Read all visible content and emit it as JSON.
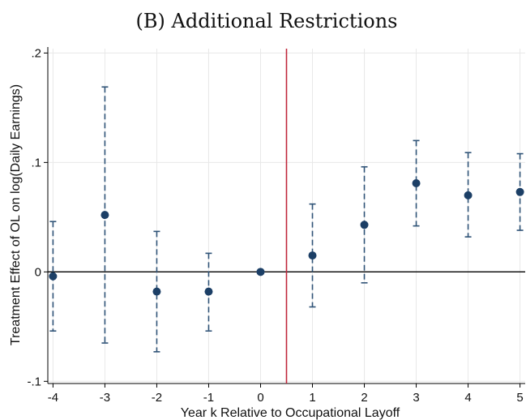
{
  "chart_data": {
    "type": "scatter",
    "title": "(B) Additional Restrictions",
    "xlabel": "Year k Relative to Occupational Layoff",
    "ylabel": "Treatment Effect of OL on log(Daily Earnings)",
    "xlim": [
      -4.1,
      5.1
    ],
    "ylim": [
      -0.102,
      0.204
    ],
    "x_ticks": [
      -4,
      -3,
      -2,
      -1,
      0,
      1,
      2,
      3,
      4,
      5
    ],
    "x_tick_labels": [
      "-4",
      "-3",
      "-2",
      "-1",
      "0",
      "1",
      "2",
      "3",
      "4",
      "5"
    ],
    "y_ticks": [
      -0.1,
      0,
      0.1,
      0.2
    ],
    "y_tick_labels": [
      "-.1",
      "0",
      ".1",
      ".2"
    ],
    "grid": true,
    "reference_line_y": 0,
    "event_line_x": 0.5,
    "series": [
      {
        "x": [
          -4,
          -3,
          -2,
          -1,
          0,
          1,
          2,
          3,
          4,
          5
        ],
        "estimate": [
          -0.004,
          0.052,
          -0.018,
          -0.018,
          0.0,
          0.015,
          0.043,
          0.081,
          0.07,
          0.073
        ],
        "ci_low": [
          -0.054,
          -0.065,
          -0.073,
          -0.054,
          0.0,
          -0.032,
          -0.01,
          0.042,
          0.032,
          0.038
        ],
        "ci_high": [
          0.046,
          0.169,
          0.037,
          0.017,
          0.0,
          0.062,
          0.096,
          0.12,
          0.109,
          0.108
        ]
      }
    ],
    "colors": {
      "marker": "#1c3f66",
      "ci": "#2f5377",
      "zero_line": "#000000",
      "event_line": "#c0283c",
      "grid": "#e8e8e8"
    }
  }
}
